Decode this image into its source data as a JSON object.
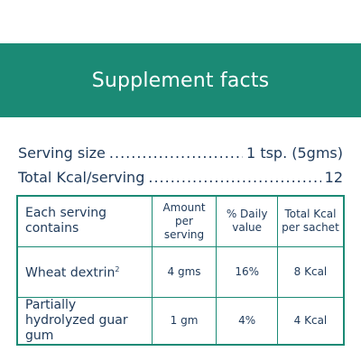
{
  "title": "Supplement facts",
  "serving": {
    "size_label": "Serving size",
    "size_value": "1 tsp. (5gms)",
    "kcal_label": "Total Kcal/serving",
    "kcal_value": "12"
  },
  "table": {
    "headers": {
      "col1": "Each serving contains",
      "col2": "Amount per serving",
      "col3": "% Daily value",
      "col4": "Total Kcal per sachet"
    },
    "rows": [
      {
        "name": "Wheat dextrin",
        "footnote": "2",
        "amount": "4 gms",
        "daily": "16%",
        "kcal": "8 Kcal"
      },
      {
        "name": "Partially hydrolyzed guar gum",
        "footnote": "",
        "amount": "1 gm",
        "daily": "4%",
        "kcal": "4 Kcal"
      }
    ]
  },
  "colors": {
    "brand_green": "#1b8a75",
    "text_navy": "#1f3a5a"
  }
}
